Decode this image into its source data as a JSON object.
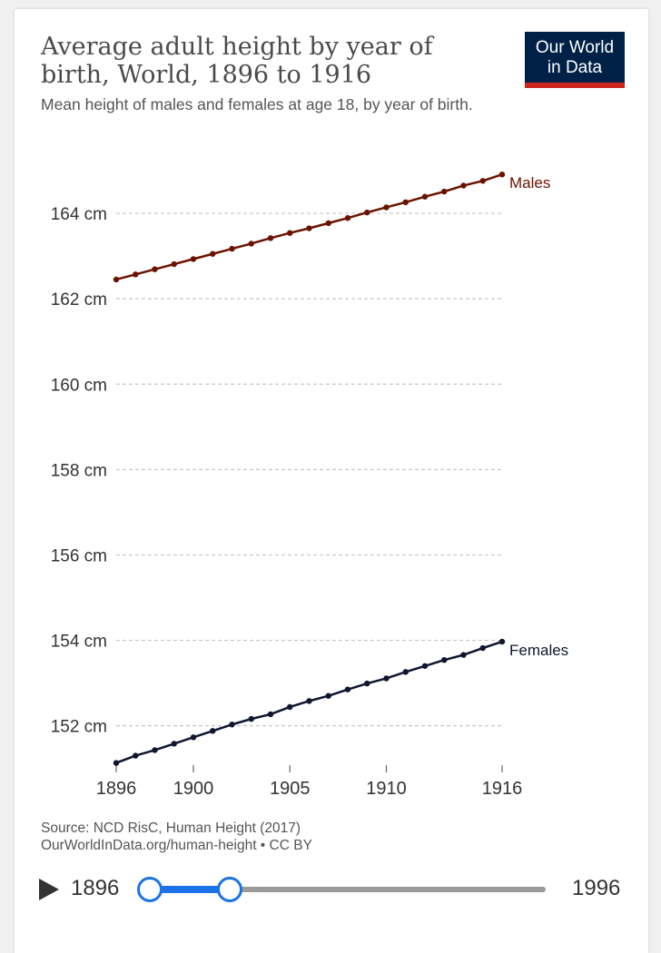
{
  "header": {
    "title": "Average adult height by year of birth, World, 1896 to 1916",
    "subtitle": "Mean height of males and females at age 18, by year of birth.",
    "logo_line1": "Our World",
    "logo_line2": "in Data"
  },
  "footer": {
    "source_line1": "Source: NCD RisC, Human Height (2017)",
    "source_line2": "OurWorldInData.org/human-height • CC BY"
  },
  "timeline": {
    "start_label": "1896",
    "end_label": "1996",
    "range_start": 1896,
    "range_end": 1916,
    "min": 1896,
    "max": 1996
  },
  "colors": {
    "males": "#6b1200",
    "females": "#101530",
    "grid": "#c8c8c8",
    "axis_text": "#333333",
    "slider": "#1a73e8"
  },
  "chart_data": {
    "type": "line",
    "title": "Average adult height by year of birth, World, 1896 to 1916",
    "xlabel": "",
    "ylabel": "",
    "x": [
      1896,
      1897,
      1898,
      1899,
      1900,
      1901,
      1902,
      1903,
      1904,
      1905,
      1906,
      1907,
      1908,
      1909,
      1910,
      1911,
      1912,
      1913,
      1914,
      1915,
      1916
    ],
    "xticks": [
      1896,
      1900,
      1905,
      1910,
      1916
    ],
    "yticks": [
      152,
      154,
      156,
      158,
      160,
      162,
      164
    ],
    "ytick_labels": [
      "152 cm",
      "154 cm",
      "156 cm",
      "158 cm",
      "160 cm",
      "162 cm",
      "164 cm"
    ],
    "xlim": [
      1896,
      1916
    ],
    "ylim": [
      151.1,
      165
    ],
    "grid": true,
    "series": [
      {
        "name": "Males",
        "values": [
          162.45,
          162.57,
          162.69,
          162.81,
          162.93,
          163.05,
          163.17,
          163.29,
          163.42,
          163.54,
          163.65,
          163.77,
          163.89,
          164.02,
          164.14,
          164.26,
          164.39,
          164.51,
          164.65,
          164.76,
          164.91
        ]
      },
      {
        "name": "Females",
        "values": [
          151.13,
          151.3,
          151.43,
          151.58,
          151.73,
          151.88,
          152.03,
          152.16,
          152.27,
          152.44,
          152.58,
          152.7,
          152.85,
          152.99,
          153.11,
          153.26,
          153.4,
          153.54,
          153.66,
          153.82,
          153.97
        ]
      }
    ]
  }
}
